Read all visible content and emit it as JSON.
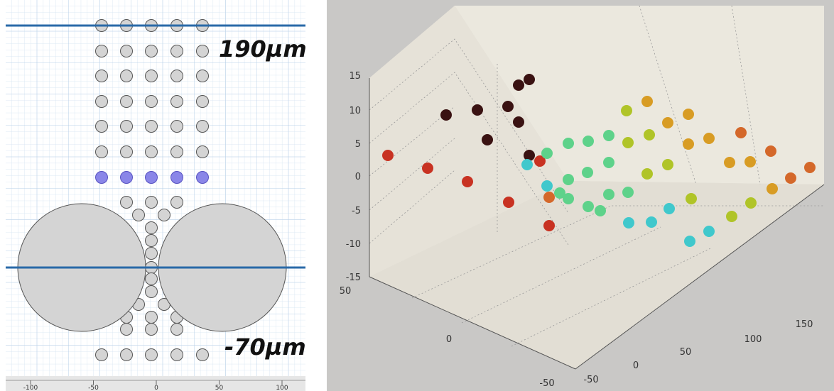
{
  "left_panel": {
    "labels": {
      "top": "190µm",
      "bottom": "-70µm"
    },
    "ruler_ticks": [
      -100,
      -50,
      0,
      50,
      100
    ]
  },
  "right_panel": {
    "z_ticks": [
      15,
      10,
      5,
      0,
      -5,
      -10,
      -15
    ],
    "y_ticks": [
      50,
      0,
      -50
    ],
    "x_ticks": [
      -50,
      0,
      50,
      100,
      150
    ]
  }
}
